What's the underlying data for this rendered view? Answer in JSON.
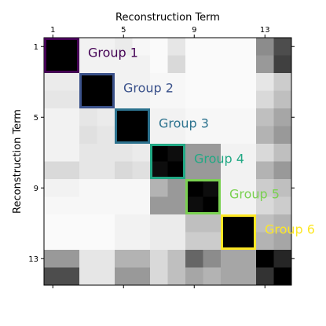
{
  "chart_data": {
    "type": "heatmap",
    "title": "",
    "xlabel": "Reconstruction Term",
    "ylabel": "Reconstruction Term",
    "n": 14,
    "x_ticks": [
      1,
      5,
      9,
      13
    ],
    "y_ticks": [
      1,
      5,
      9,
      13
    ],
    "colormap": "gray_r",
    "value_range": [
      0,
      1
    ],
    "matrix": [
      [
        1.0,
        1.0,
        0.05,
        0.05,
        0.08,
        0.03,
        0.02,
        0.1,
        0.02,
        0.02,
        0.02,
        0.02,
        0.45,
        0.7
      ],
      [
        1.0,
        1.0,
        0.05,
        0.05,
        0.05,
        0.05,
        0.02,
        0.15,
        0.02,
        0.02,
        0.02,
        0.02,
        0.4,
        0.75
      ],
      [
        0.08,
        0.08,
        1.0,
        1.0,
        0.05,
        0.05,
        0.03,
        0.03,
        0.02,
        0.02,
        0.02,
        0.02,
        0.1,
        0.2
      ],
      [
        0.1,
        0.1,
        1.0,
        1.0,
        0.05,
        0.05,
        0.03,
        0.03,
        0.02,
        0.02,
        0.02,
        0.02,
        0.15,
        0.25
      ],
      [
        0.05,
        0.05,
        0.1,
        0.08,
        1.0,
        1.0,
        0.05,
        0.05,
        0.03,
        0.03,
        0.03,
        0.03,
        0.25,
        0.35
      ],
      [
        0.05,
        0.05,
        0.12,
        0.1,
        1.0,
        1.0,
        0.05,
        0.05,
        0.03,
        0.03,
        0.03,
        0.03,
        0.3,
        0.4
      ],
      [
        0.05,
        0.05,
        0.1,
        0.1,
        0.1,
        0.08,
        1.0,
        0.95,
        0.4,
        0.4,
        0.05,
        0.05,
        0.15,
        0.25
      ],
      [
        0.15,
        0.15,
        0.1,
        0.1,
        0.15,
        0.12,
        0.95,
        1.0,
        0.4,
        0.4,
        0.05,
        0.05,
        0.3,
        0.4
      ],
      [
        0.05,
        0.05,
        0.03,
        0.03,
        0.03,
        0.03,
        0.3,
        0.4,
        1.0,
        0.95,
        0.05,
        0.05,
        0.2,
        0.25
      ],
      [
        0.03,
        0.03,
        0.03,
        0.03,
        0.03,
        0.03,
        0.4,
        0.4,
        0.95,
        1.0,
        0.05,
        0.05,
        0.15,
        0.2
      ],
      [
        0.02,
        0.02,
        0.02,
        0.02,
        0.05,
        0.05,
        0.08,
        0.08,
        0.25,
        0.25,
        1.0,
        1.0,
        0.25,
        0.3
      ],
      [
        0.02,
        0.02,
        0.02,
        0.02,
        0.05,
        0.05,
        0.08,
        0.08,
        0.2,
        0.2,
        1.0,
        1.0,
        0.3,
        0.35
      ],
      [
        0.4,
        0.4,
        0.1,
        0.1,
        0.3,
        0.3,
        0.15,
        0.25,
        0.6,
        0.45,
        0.35,
        0.35,
        1.0,
        0.85
      ],
      [
        0.7,
        0.7,
        0.1,
        0.1,
        0.4,
        0.4,
        0.15,
        0.25,
        0.35,
        0.3,
        0.35,
        0.35,
        0.8,
        1.0
      ]
    ],
    "groups": [
      {
        "label": "Group 1",
        "start": 1,
        "end": 2,
        "color": "#440154"
      },
      {
        "label": "Group 2",
        "start": 3,
        "end": 4,
        "color": "#3b528b"
      },
      {
        "label": "Group 3",
        "start": 5,
        "end": 6,
        "color": "#2c728e"
      },
      {
        "label": "Group 4",
        "start": 7,
        "end": 8,
        "color": "#21a884"
      },
      {
        "label": "Group 5",
        "start": 9,
        "end": 10,
        "color": "#7ad151"
      },
      {
        "label": "Group 6",
        "start": 11,
        "end": 12,
        "color": "#fde725"
      }
    ]
  }
}
